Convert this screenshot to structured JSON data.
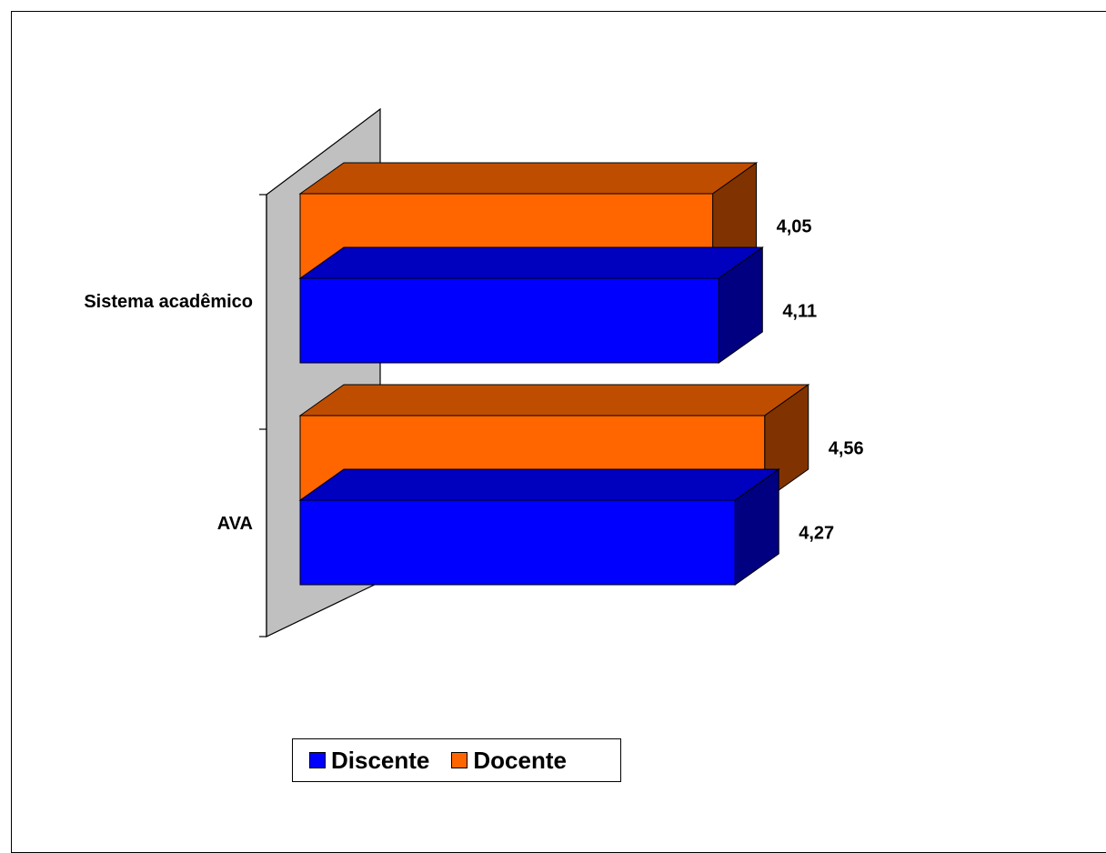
{
  "chart_data": {
    "type": "bar",
    "orientation": "horizontal",
    "three_d": true,
    "categories": [
      "Sistema acadêmico",
      "AVA"
    ],
    "series": [
      {
        "name": "Docente",
        "color": "#FF6600",
        "values": [
          4.05,
          4.56
        ],
        "labels": [
          "4,05",
          "4,56"
        ]
      },
      {
        "name": "Discente",
        "color": "#0000FF",
        "values": [
          4.11,
          4.27
        ],
        "labels": [
          "4,11",
          "4,27"
        ]
      }
    ],
    "xlim": [
      0,
      5
    ],
    "legend_position": "bottom",
    "grid": false
  },
  "legend": {
    "items": [
      {
        "label": "Discente",
        "color": "#0000FF"
      },
      {
        "label": "Docente",
        "color": "#FF6600"
      }
    ]
  }
}
